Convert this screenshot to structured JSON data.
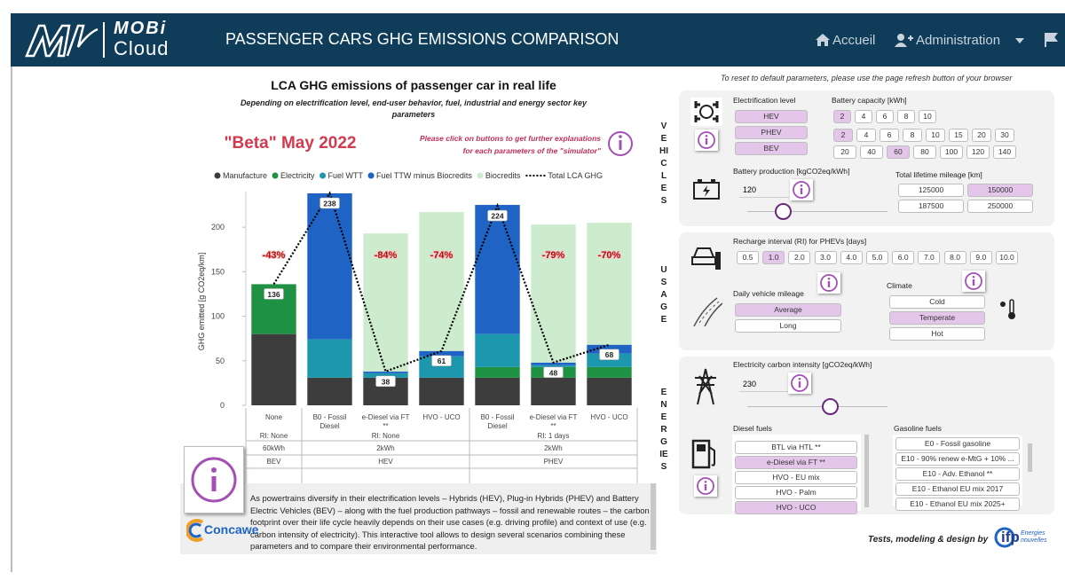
{
  "header": {
    "logo_line1": "MOBi",
    "logo_line2": "Cloud",
    "title": "PASSENGER CARS GHG EMISSIONS COMPARISON",
    "nav": [
      "Accueil",
      "Administration"
    ]
  },
  "reset_note": "To reset to default parameters, please use the page refresh button of your browser",
  "section_labels": [
    "VEHICLES",
    "USAGE",
    "ENERGIES"
  ],
  "chart_data": {
    "type": "bar",
    "stacked": true,
    "title": "LCA GHG emissions of passenger car in real life",
    "subtitle": [
      "Depending on electrification level, end-user behavior, fuel, industrial and energy sector key",
      "parameters"
    ],
    "beta": "\"Beta\" May 2022",
    "hint": [
      "Please click on buttons to get further explanations",
      "for each parameters of the \"simulator\""
    ],
    "ylabel": "GHG emitted [g CO2eq/km]",
    "categories": [
      "None",
      "B0 - Fossil Diesel",
      "e-Diesel via FT **",
      "HVO - UCO",
      "B0 - Fossil Diesel",
      "e-Diesel via FT **",
      "HVO - UCO"
    ],
    "groups": [
      {
        "ri": "RI: None",
        "battery": "60kWh",
        "powertrain": "BEV",
        "size": 1
      },
      {
        "ri": "RI: None",
        "battery": "2kWh",
        "powertrain": "HEV",
        "size": 3
      },
      {
        "ri": "RI: 1 days",
        "battery": "2kWh",
        "powertrain": "PHEV",
        "size": 3
      }
    ],
    "ylim": [
      0,
      240
    ],
    "yticks": [
      0,
      50,
      100,
      150,
      200
    ],
    "series": [
      {
        "name": "Manufacture",
        "color": "#3d3d3d",
        "values": [
          80,
          31,
          31,
          31,
          31,
          31,
          31
        ]
      },
      {
        "name": "Electricity",
        "color": "#1f9142",
        "values": [
          56,
          0,
          0,
          0,
          12,
          12,
          12
        ]
      },
      {
        "name": "Fuel WTT",
        "color": "#1c97ad",
        "values": [
          0,
          43,
          5,
          24,
          37,
          2,
          15
        ]
      },
      {
        "name": "Fuel TTW minus Biocredits",
        "color": "#1f63c4",
        "values": [
          0,
          164,
          2,
          6,
          145,
          3,
          10
        ]
      },
      {
        "name": "Biocredits",
        "color": "#cdeccd",
        "values": [
          0,
          0,
          155,
          156,
          0,
          155,
          137
        ]
      },
      {
        "name": "Total LCA GHG",
        "type": "line",
        "color": "#000000",
        "values": [
          136,
          238,
          38,
          61,
          224,
          48,
          68
        ]
      }
    ],
    "annotations": [
      "-43%",
      null,
      "-84%",
      "-74%",
      null,
      "-79%",
      "-70%"
    ]
  },
  "vehicles": {
    "electrification_label": "Electrification level",
    "electrification": [
      "HEV",
      "PHEV",
      "BEV"
    ],
    "battery_label": "Battery capacity [kWh]",
    "battery_rows": [
      {
        "options": [
          2,
          4,
          6,
          8,
          10
        ],
        "selected": 2
      },
      {
        "options": [
          2,
          4,
          6,
          8,
          10,
          15,
          20,
          30
        ],
        "selected": 2
      },
      {
        "options": [
          20,
          40,
          60,
          80,
          100,
          120,
          140
        ],
        "selected": 60
      }
    ],
    "production_label": "Battery production [kgCO2eq/kWh]",
    "production_value": 120,
    "mileage_label": "Total lifetime mileage [km]",
    "mileage_options": [
      125000,
      150000,
      187500,
      250000
    ],
    "mileage_selected": 150000
  },
  "usage": {
    "recharge_label": "Recharge interval (RI) for PHEVs [days]",
    "recharge_options": [
      "0.5",
      "1.0",
      "2.0",
      "3.0",
      "4.0",
      "5.0",
      "6.0",
      "7.0",
      "8.0",
      "9.0",
      "10.0"
    ],
    "recharge_selected": "1.0",
    "daily_label": "Daily vehicle mileage",
    "daily_options": [
      "Average",
      "Long"
    ],
    "daily_selected": "Average",
    "climate_label": "Climate",
    "climate_options": [
      "Cold",
      "Temperate",
      "Hot"
    ],
    "climate_selected": "Temperate"
  },
  "energies": {
    "carbon_label": "Electricity carbon intensity [gCO2eq/kWh]",
    "carbon_value": 230,
    "diesel_label": "Diesel fuels",
    "diesel_options": [
      "BTL via HTL **",
      "e-Diesel via FT **",
      "HVO - EU mix",
      "HVO - Palm",
      "HVO - UCO"
    ],
    "diesel_selected": [
      "e-Diesel via FT **",
      "HVO - UCO"
    ],
    "gasoline_label": "Gasoline fuels",
    "gasoline_options": [
      "E0 - Fossil gasoline",
      "E10 - 90% renew e-MtG + 10% ...",
      "E10 - Adv. Ethanol **",
      "E10 - Ethanol EU mix 2017",
      "E10 - Ethanol EU mix 2025+"
    ]
  },
  "footer": {
    "description": "As powertrains diversify in their electrification levels – Hybrids (HEV), Plug-in Hybrids (PHEV) and Battery Electric Vehicles (BEV) – along with the fuel production pathways – fossil and renewable routes – the carbon footprint over their life cycle heavily depends on their use cases (e.g. driving profile) and context of use (e.g. carbon intensity of electricity). This interactive tool allows to design several scenarios combining these parameters and to compare their environmental performance.",
    "concawe": "Concawe",
    "credit": "Tests, modeling & design by",
    "ifp": "ifp",
    "ifp_sub": "Energies nouvelles"
  }
}
